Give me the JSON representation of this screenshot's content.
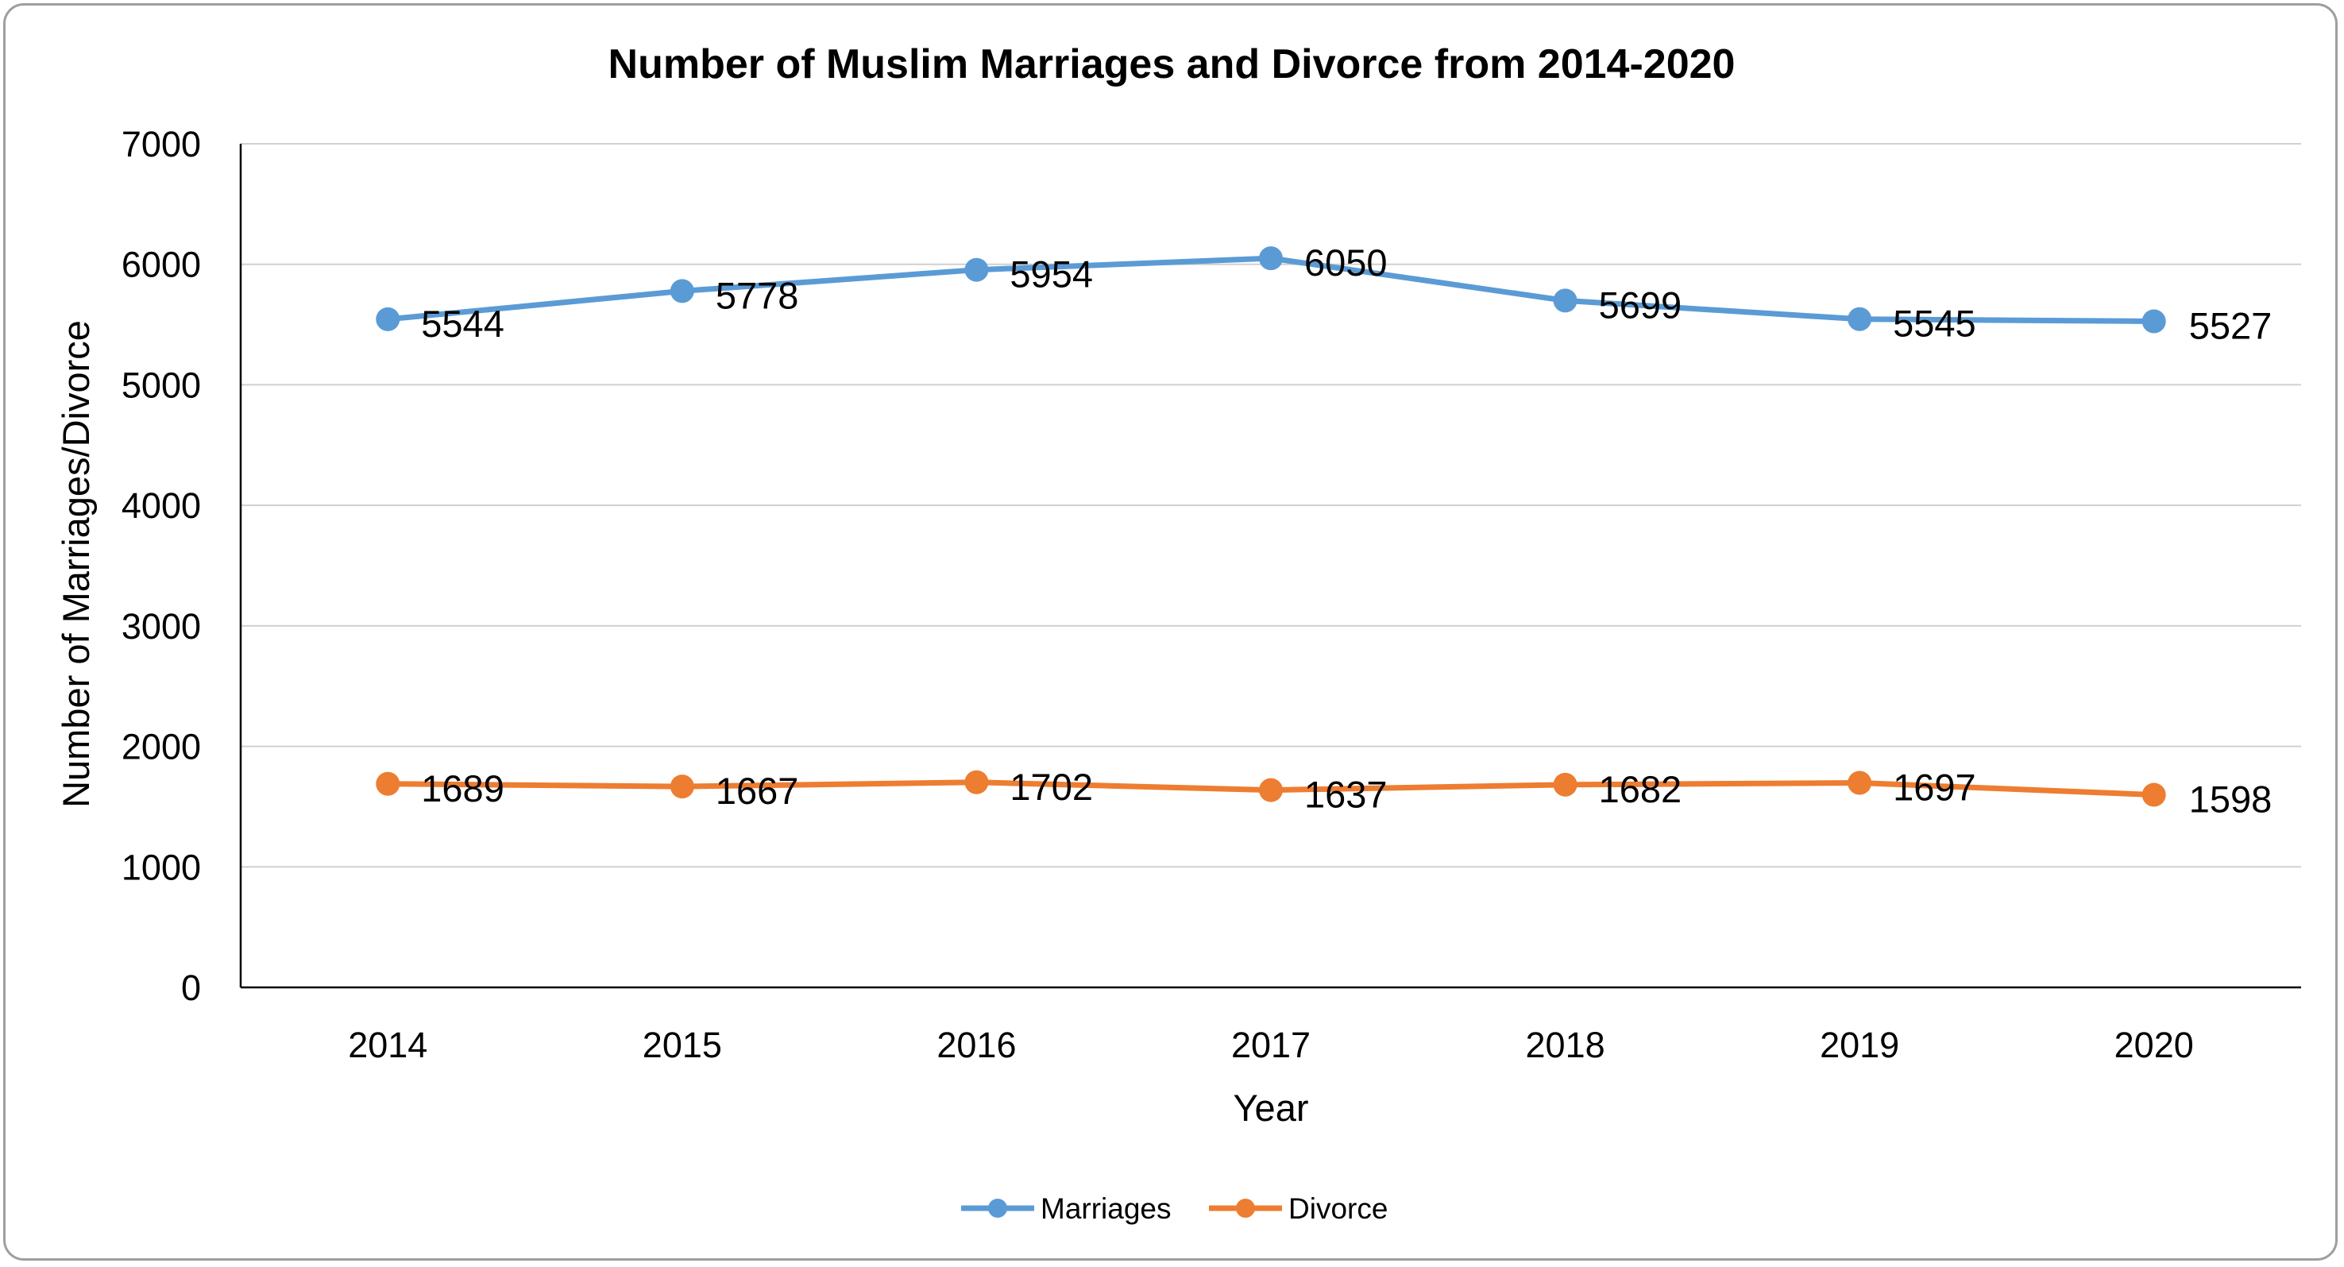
{
  "chart_data": {
    "type": "line",
    "title": "Number of Muslim Marriages and Divorce from 2014-2020",
    "xlabel": "Year",
    "ylabel": "Number of Marriages/Divorce",
    "categories": [
      "2014",
      "2015",
      "2016",
      "2017",
      "2018",
      "2019",
      "2020"
    ],
    "ylim": [
      0,
      7000
    ],
    "yticks": [
      "0",
      "1000",
      "2000",
      "3000",
      "4000",
      "5000",
      "6000",
      "7000"
    ],
    "grid": true,
    "legend_position": "bottom",
    "series": [
      {
        "name": "Marriages",
        "color": "#5b9bd5",
        "values": [
          5544,
          5778,
          5954,
          6050,
          5699,
          5545,
          5527
        ]
      },
      {
        "name": "Divorce",
        "color": "#ed7d31",
        "values": [
          1689,
          1667,
          1702,
          1637,
          1682,
          1697,
          1598
        ]
      }
    ]
  }
}
